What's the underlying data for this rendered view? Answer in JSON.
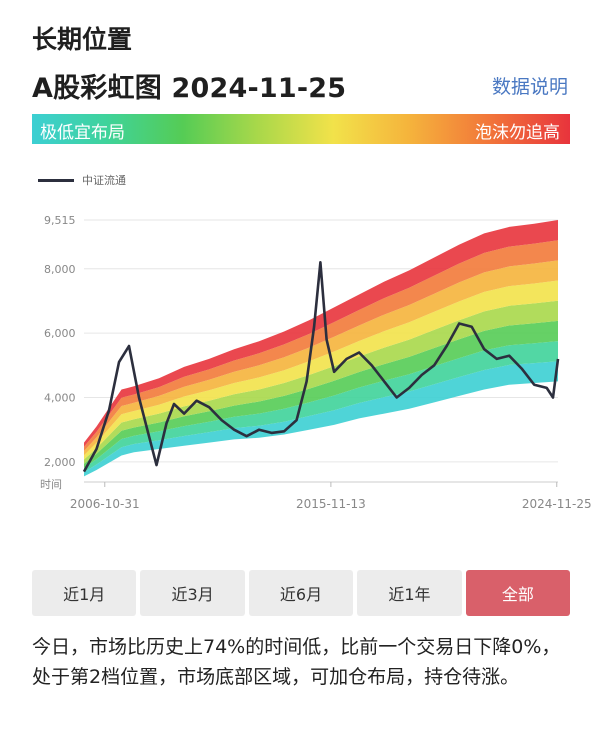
{
  "header": {
    "section_title": "长期位置",
    "chart_title": "A股彩虹图",
    "chart_date": "2024-11-25",
    "data_link": "数据说明"
  },
  "rainbow_bar": {
    "left_label": "极低宜布局",
    "right_label": "泡沫勿追高"
  },
  "tabs": [
    {
      "label": "近1月",
      "active": false
    },
    {
      "label": "近3月",
      "active": false
    },
    {
      "label": "近6月",
      "active": false
    },
    {
      "label": "近1年",
      "active": false
    },
    {
      "label": "全部",
      "active": true
    }
  ],
  "summary": "今日，市场比历史上74%的时间低，比前一个交易日下降0%，处于第2档位置，市场底部区域，可加仓布局，持仓待涨。",
  "colors": {
    "bands": [
      "#3ccfd3",
      "#3fd39a",
      "#55cc55",
      "#a9d84a",
      "#f2e24a",
      "#f5b43c",
      "#f27a3a",
      "#e8343c"
    ],
    "index_line": "#2c2f3e",
    "active_tab": "#d9606a",
    "link": "#4a78c2"
  },
  "chart_data": {
    "type": "area",
    "legend": [
      "中证流通"
    ],
    "legend_position": "top-left",
    "y_ticks": [
      2000,
      4000,
      6000,
      8000,
      9515
    ],
    "y_tick_labels": [
      "2,000",
      "4,000",
      "6,000",
      "8,000",
      "9,515"
    ],
    "ylim": [
      1500,
      9515
    ],
    "x_axis_label": "时间",
    "x_ticks": [
      2006.83,
      2015.87,
      2024.9
    ],
    "x_tick_labels": [
      "2006-10-31",
      "2015-11-13",
      "2024-11-25"
    ],
    "xlim": [
      2006.0,
      2024.95
    ],
    "grid": true,
    "bands": {
      "x": [
        2006.0,
        2006.5,
        2007.5,
        2008.0,
        2009.0,
        2010.0,
        2011.0,
        2012.0,
        2013.0,
        2014.0,
        2015.0,
        2016.0,
        2017.0,
        2018.0,
        2019.0,
        2020.0,
        2021.0,
        2022.0,
        2023.0,
        2024.0,
        2024.95
      ],
      "lower": [
        1550,
        1750,
        2200,
        2300,
        2400,
        2500,
        2600,
        2700,
        2750,
        2850,
        3000,
        3150,
        3350,
        3500,
        3650,
        3850,
        4050,
        4250,
        4400,
        4450,
        4500
      ],
      "upper": [
        2600,
        3100,
        4250,
        4350,
        4600,
        4950,
        5200,
        5500,
        5750,
        6050,
        6400,
        6800,
        7200,
        7600,
        7950,
        8350,
        8750,
        9100,
        9300,
        9400,
        9515
      ]
    },
    "series": [
      {
        "name": "中证流通",
        "x": [
          2006.0,
          2006.5,
          2007.0,
          2007.4,
          2007.8,
          2008.2,
          2008.6,
          2008.9,
          2009.3,
          2009.6,
          2010.0,
          2010.5,
          2011.0,
          2011.5,
          2012.0,
          2012.5,
          2013.0,
          2013.5,
          2014.0,
          2014.5,
          2014.9,
          2015.2,
          2015.45,
          2015.7,
          2016.0,
          2016.5,
          2017.0,
          2017.5,
          2018.0,
          2018.5,
          2019.0,
          2019.5,
          2020.0,
          2020.5,
          2021.0,
          2021.5,
          2022.0,
          2022.5,
          2023.0,
          2023.5,
          2024.0,
          2024.5,
          2024.75,
          2024.95
        ],
        "values": [
          1700,
          2400,
          3600,
          5100,
          5600,
          4000,
          2800,
          1900,
          3200,
          3800,
          3500,
          3900,
          3700,
          3300,
          3000,
          2800,
          3000,
          2900,
          2950,
          3300,
          4500,
          6200,
          8200,
          5800,
          4800,
          5200,
          5400,
          5000,
          4500,
          4000,
          4300,
          4700,
          5000,
          5600,
          6300,
          6200,
          5500,
          5200,
          5300,
          4900,
          4400,
          4300,
          4000,
          5200
        ]
      }
    ]
  }
}
